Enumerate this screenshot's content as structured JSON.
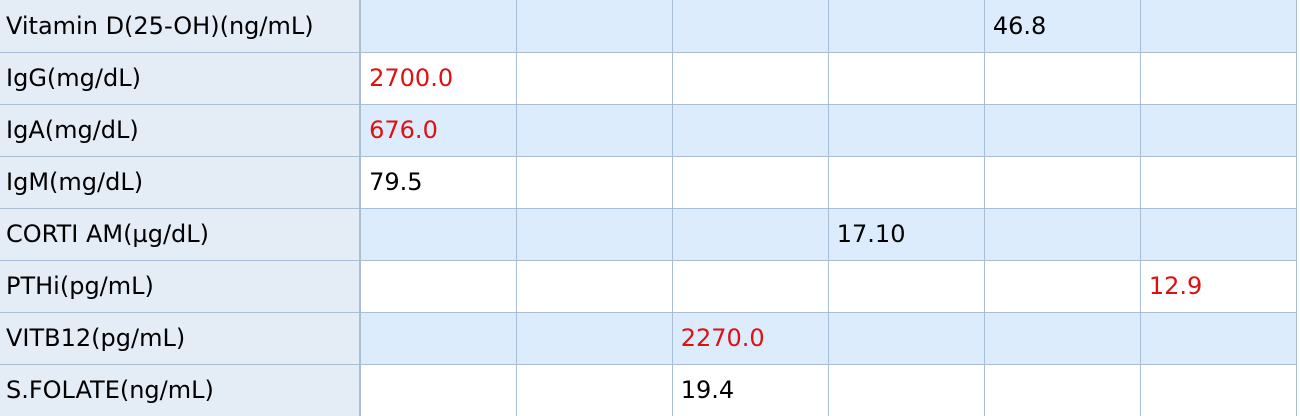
{
  "results_table": {
    "rows": [
      {
        "label": "Vitamin D(25-OH)(ng/mL)",
        "cells": [
          "",
          "",
          "",
          "",
          "46.8",
          ""
        ],
        "flags": [
          false,
          false,
          false,
          false,
          false,
          false
        ]
      },
      {
        "label": "IgG(mg/dL)",
        "cells": [
          "2700.0",
          "",
          "",
          "",
          "",
          ""
        ],
        "flags": [
          true,
          false,
          false,
          false,
          false,
          false
        ]
      },
      {
        "label": "IgA(mg/dL)",
        "cells": [
          "676.0",
          "",
          "",
          "",
          "",
          ""
        ],
        "flags": [
          true,
          false,
          false,
          false,
          false,
          false
        ]
      },
      {
        "label": "IgM(mg/dL)",
        "cells": [
          "79.5",
          "",
          "",
          "",
          "",
          ""
        ],
        "flags": [
          false,
          false,
          false,
          false,
          false,
          false
        ]
      },
      {
        "label": "CORTI AM(µg/dL)",
        "cells": [
          "",
          "",
          "",
          "17.10",
          "",
          ""
        ],
        "flags": [
          false,
          false,
          false,
          false,
          false,
          false
        ]
      },
      {
        "label": "PTHi(pg/mL)",
        "cells": [
          "",
          "",
          "",
          "",
          "",
          "12.9"
        ],
        "flags": [
          false,
          false,
          false,
          false,
          false,
          true
        ]
      },
      {
        "label": "VITB12(pg/mL)",
        "cells": [
          "",
          "",
          "2270.0",
          "",
          "",
          ""
        ],
        "flags": [
          false,
          false,
          true,
          false,
          false,
          false
        ]
      },
      {
        "label": "S.FOLATE(ng/mL)",
        "cells": [
          "",
          "",
          "19.4",
          "",
          "",
          ""
        ],
        "flags": [
          false,
          false,
          false,
          false,
          false,
          false
        ]
      }
    ]
  },
  "colors": {
    "abnormal_value": "#e01010",
    "label_column_bg": "#e4ecf6",
    "shaded_row_bg": "#dcecfc",
    "grid_line": "#a9bfd6"
  }
}
